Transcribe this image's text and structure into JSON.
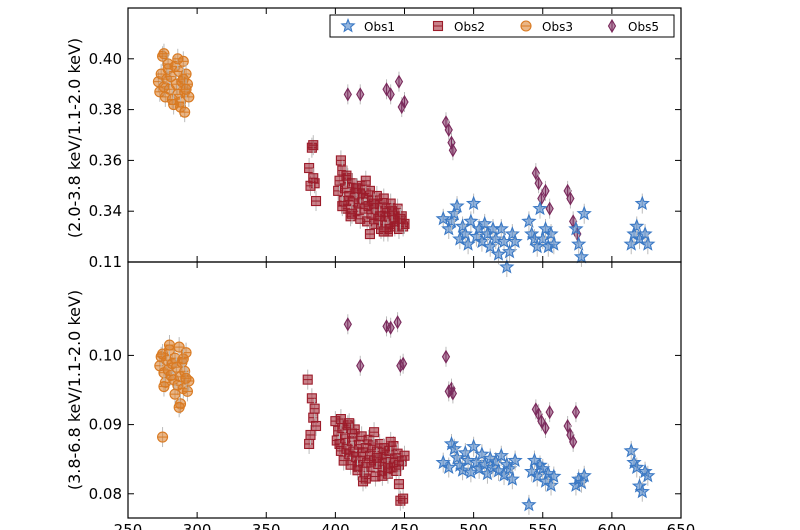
{
  "chart_data": {
    "type": "scatter",
    "legend": {
      "placement": "top-right",
      "entries": [
        {
          "name": "Obs1",
          "marker": "star",
          "color": "#3a78c4"
        },
        {
          "name": "Obs2",
          "marker": "square",
          "color": "#9c1c2a"
        },
        {
          "name": "Obs3",
          "marker": "circle",
          "color": "#d97a22"
        },
        {
          "name": "Obs5",
          "marker": "diamond",
          "color": "#7a2a5c"
        }
      ]
    },
    "xlim": [
      250,
      650
    ],
    "x_ticks": [
      250,
      300,
      350,
      400,
      450,
      500,
      550,
      600,
      650
    ],
    "panels": [
      {
        "ylabel": "(2.0-3.8 keV/1.1-2.0 keV)",
        "ylim": [
          0.32,
          0.42
        ],
        "y_ticks": [
          0.34,
          0.36,
          0.38,
          0.4
        ],
        "y_tick_labels": [
          "0.34",
          "0.36",
          "0.38",
          "0.40"
        ],
        "extra_tick_label": "0.11",
        "series": [
          {
            "name": "Obs3",
            "x": [
              272,
              273,
              274,
              275,
              276,
              277,
              278,
              279,
              280,
              281,
              282,
              284,
              285,
              286,
              287,
              288,
              289,
              290,
              291,
              292,
              293,
              294,
              276,
              279,
              283,
              288,
              291,
              286,
              290,
              292
            ],
            "y": [
              0.391,
              0.387,
              0.394,
              0.401,
              0.389,
              0.385,
              0.392,
              0.396,
              0.388,
              0.393,
              0.384,
              0.397,
              0.39,
              0.386,
              0.395,
              0.383,
              0.391,
              0.399,
              0.387,
              0.394,
              0.39,
              0.385,
              0.402,
              0.398,
              0.382,
              0.381,
              0.379,
              0.4,
              0.392,
              0.388
            ]
          },
          {
            "name": "Obs2",
            "x": [
              381,
              383,
              384,
              385,
              386,
              382,
              384,
              402,
              403,
              404,
              405,
              406,
              407,
              408,
              409,
              410,
              411,
              412,
              413,
              414,
              415,
              416,
              417,
              418,
              419,
              420,
              421,
              422,
              423,
              424,
              425,
              426,
              427,
              428,
              429,
              430,
              431,
              432,
              433,
              434,
              435,
              436,
              437,
              438,
              439,
              440,
              441,
              442,
              443,
              444,
              445,
              446,
              447,
              448,
              449,
              450,
              405,
              412,
              418,
              425,
              432,
              438,
              444,
              408,
              415,
              422,
              428,
              435,
              441,
              447
            ],
            "y": [
              0.357,
              0.365,
              0.366,
              0.351,
              0.344,
              0.35,
              0.353,
              0.348,
              0.352,
              0.36,
              0.356,
              0.344,
              0.349,
              0.341,
              0.353,
              0.346,
              0.338,
              0.351,
              0.344,
              0.347,
              0.34,
              0.349,
              0.343,
              0.337,
              0.35,
              0.345,
              0.341,
              0.347,
              0.336,
              0.342,
              0.348,
              0.339,
              0.344,
              0.335,
              0.341,
              0.346,
              0.337,
              0.343,
              0.333,
              0.34,
              0.345,
              0.336,
              0.341,
              0.332,
              0.338,
              0.343,
              0.335,
              0.339,
              0.334,
              0.337,
              0.341,
              0.333,
              0.336,
              0.338,
              0.334,
              0.335,
              0.342,
              0.339,
              0.347,
              0.331,
              0.338,
              0.333,
              0.336,
              0.354,
              0.349,
              0.352,
              0.343,
              0.332,
              0.34,
              0.337
            ]
          },
          {
            "name": "Obs5",
            "x": [
              409,
              418,
              437,
              440,
              446,
              448,
              450,
              480,
              482,
              484,
              485,
              545,
              547,
              549,
              552,
              555,
              568,
              570,
              572,
              575
            ],
            "y": [
              0.386,
              0.386,
              0.388,
              0.386,
              0.391,
              0.381,
              0.383,
              0.375,
              0.372,
              0.367,
              0.364,
              0.355,
              0.351,
              0.345,
              0.348,
              0.341,
              0.348,
              0.345,
              0.336,
              0.331
            ]
          },
          {
            "name": "Obs1",
            "x": [
              478,
              482,
              484,
              486,
              488,
              490,
              492,
              494,
              496,
              498,
              500,
              502,
              504,
              506,
              508,
              510,
              512,
              514,
              516,
              518,
              520,
              522,
              524,
              526,
              528,
              530,
              540,
              542,
              544,
              546,
              548,
              550,
              552,
              554,
              556,
              558,
              574,
              576,
              578,
              580,
              614,
              616,
              618,
              620,
              622,
              624,
              626
            ],
            "y": [
              0.337,
              0.333,
              0.336,
              0.339,
              0.342,
              0.329,
              0.334,
              0.331,
              0.327,
              0.336,
              0.343,
              0.33,
              0.333,
              0.328,
              0.335,
              0.331,
              0.326,
              0.333,
              0.329,
              0.323,
              0.333,
              0.328,
              0.318,
              0.324,
              0.331,
              0.328,
              0.336,
              0.331,
              0.329,
              0.326,
              0.341,
              0.329,
              0.333,
              0.326,
              0.331,
              0.327,
              0.333,
              0.327,
              0.322,
              0.339,
              0.327,
              0.331,
              0.334,
              0.329,
              0.343,
              0.331,
              0.327
            ]
          }
        ]
      },
      {
        "ylabel": "(3.8-6.8 keV/1.1-2.0 keV)",
        "ylim": [
          0.0765,
          0.1135
        ],
        "y_ticks": [
          0.08,
          0.09,
          0.1
        ],
        "y_tick_labels": [
          "0.08",
          "0.09",
          "0.10"
        ],
        "series": [
          {
            "name": "Obs3",
            "x": [
              273,
              274,
              275,
              276,
              277,
              278,
              279,
              280,
              281,
              282,
              283,
              284,
              285,
              286,
              287,
              288,
              289,
              290,
              291,
              292,
              293,
              294,
              276,
              280,
              284,
              288,
              292,
              287,
              290,
              275
            ],
            "y": [
              0.0985,
              0.0998,
              0.1002,
              0.0975,
              0.0961,
              0.0993,
              0.0979,
              0.1008,
              0.0971,
              0.0988,
              0.0965,
              0.0996,
              0.0983,
              0.0957,
              0.1012,
              0.0969,
              0.099,
              0.0952,
              0.0977,
              0.1004,
              0.0948,
              0.0963,
              0.0955,
              0.1015,
              0.0944,
              0.093,
              0.0967,
              0.0925,
              0.0995,
              0.0882
            ]
          },
          {
            "name": "Obs2",
            "x": [
              380,
              381,
              382,
              383,
              384,
              385,
              386,
              400,
              401,
              402,
              403,
              404,
              405,
              406,
              407,
              408,
              409,
              410,
              411,
              412,
              413,
              414,
              415,
              416,
              417,
              418,
              419,
              420,
              421,
              422,
              423,
              424,
              425,
              426,
              427,
              428,
              429,
              430,
              431,
              432,
              433,
              434,
              435,
              436,
              437,
              438,
              439,
              440,
              441,
              442,
              443,
              444,
              445,
              446,
              447,
              448,
              449,
              450,
              404,
              410,
              416,
              422,
              428,
              434,
              440,
              446,
              412,
              420,
              430,
              438
            ],
            "y": [
              0.0965,
              0.0872,
              0.0885,
              0.0938,
              0.091,
              0.0923,
              0.0898,
              0.0905,
              0.0877,
              0.0891,
              0.0872,
              0.0862,
              0.0895,
              0.0848,
              0.088,
              0.0865,
              0.0899,
              0.0857,
              0.0842,
              0.0876,
              0.0861,
              0.0893,
              0.0853,
              0.0839,
              0.0871,
              0.0848,
              0.0883,
              0.086,
              0.0832,
              0.0866,
              0.0845,
              0.0878,
              0.0855,
              0.0839,
              0.087,
              0.0848,
              0.0825,
              0.0861,
              0.0843,
              0.0872,
              0.0852,
              0.0834,
              0.0866,
              0.0845,
              0.0857,
              0.0829,
              0.0862,
              0.0846,
              0.0838,
              0.0869,
              0.0851,
              0.0833,
              0.0858,
              0.0842,
              0.079,
              0.0847,
              0.0793,
              0.0855,
              0.0908,
              0.0902,
              0.0834,
              0.0822,
              0.0889,
              0.0826,
              0.0875,
              0.0814,
              0.0887,
              0.0818,
              0.0852,
              0.0837
            ]
          },
          {
            "name": "Obs5",
            "x": [
              409,
              418,
              437,
              440,
              445,
              447,
              449,
              480,
              482,
              484,
              485,
              545,
              547,
              549,
              552,
              555,
              568,
              570,
              572,
              574
            ],
            "y": [
              0.1045,
              0.0985,
              0.1042,
              0.104,
              0.1048,
              0.0985,
              0.0988,
              0.0998,
              0.0948,
              0.0952,
              0.0945,
              0.0922,
              0.0915,
              0.0905,
              0.0895,
              0.0918,
              0.0898,
              0.0885,
              0.0875,
              0.0918
            ]
          },
          {
            "name": "Obs1",
            "x": [
              478,
              482,
              484,
              486,
              488,
              490,
              492,
              494,
              496,
              498,
              500,
              502,
              504,
              506,
              508,
              510,
              512,
              514,
              516,
              518,
              520,
              522,
              524,
              526,
              528,
              530,
              540,
              542,
              544,
              546,
              548,
              550,
              552,
              554,
              556,
              558,
              574,
              576,
              578,
              580,
              614,
              616,
              618,
              620,
              622,
              624,
              626
            ],
            "y": [
              0.0845,
              0.0838,
              0.0872,
              0.0865,
              0.0852,
              0.0841,
              0.0834,
              0.0859,
              0.0848,
              0.0831,
              0.0868,
              0.0845,
              0.0836,
              0.0857,
              0.0842,
              0.0829,
              0.0851,
              0.0838,
              0.0846,
              0.0833,
              0.0855,
              0.0827,
              0.0842,
              0.0836,
              0.0821,
              0.0848,
              0.0784,
              0.0832,
              0.0848,
              0.0825,
              0.0841,
              0.0836,
              0.0818,
              0.0829,
              0.0812,
              0.0825,
              0.0812,
              0.0821,
              0.0816,
              0.0826,
              0.0862,
              0.0845,
              0.0838,
              0.0811,
              0.0803,
              0.0832,
              0.0826
            ]
          }
        ]
      }
    ]
  }
}
